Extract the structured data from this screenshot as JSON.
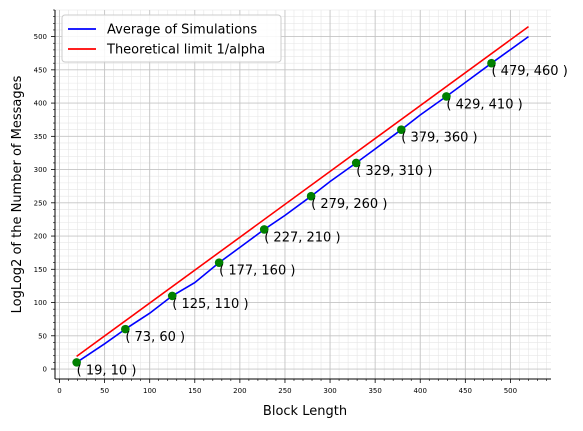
{
  "chart_data": {
    "type": "line",
    "xlabel": "Block Length",
    "ylabel": "LogLog2 of the Number of Messages",
    "xlim": [
      -5,
      545
    ],
    "ylim": [
      -15,
      540
    ],
    "grid": true,
    "minor_grid": true,
    "legend_position": "top-left",
    "xticks": [
      0,
      50,
      100,
      150,
      200,
      250,
      300,
      350,
      400,
      450,
      500
    ],
    "yticks": [
      0,
      50,
      100,
      150,
      200,
      250,
      300,
      350,
      400,
      450,
      500
    ],
    "series": [
      {
        "name": "Average of Simulations",
        "color": "#0000ff",
        "x": [
          19,
          50,
          73,
          100,
          125,
          150,
          177,
          200,
          227,
          250,
          279,
          300,
          329,
          350,
          379,
          400,
          429,
          450,
          479,
          520
        ],
        "y": [
          10,
          38,
          60,
          84,
          110,
          130,
          160,
          183,
          210,
          231,
          260,
          282,
          310,
          331,
          360,
          382,
          410,
          431,
          460,
          500
        ]
      },
      {
        "name": "Theoretical limit 1/alpha",
        "color": "#ff0000",
        "x": [
          19,
          520
        ],
        "y": [
          19,
          515
        ]
      }
    ],
    "markers": {
      "color": "#008000",
      "points": [
        {
          "x": 19,
          "y": 10,
          "label": "( 19, 10 )"
        },
        {
          "x": 73,
          "y": 60,
          "label": "( 73, 60 )"
        },
        {
          "x": 125,
          "y": 110,
          "label": "( 125, 110 )"
        },
        {
          "x": 177,
          "y": 160,
          "label": "( 177, 160 )"
        },
        {
          "x": 227,
          "y": 210,
          "label": "( 227, 210 )"
        },
        {
          "x": 279,
          "y": 260,
          "label": "( 279, 260 )"
        },
        {
          "x": 329,
          "y": 310,
          "label": "( 329, 310 )"
        },
        {
          "x": 379,
          "y": 360,
          "label": "( 379, 360 )"
        },
        {
          "x": 429,
          "y": 410,
          "label": "( 429, 410 )"
        },
        {
          "x": 479,
          "y": 460,
          "label": "( 479, 460 )"
        }
      ]
    }
  }
}
